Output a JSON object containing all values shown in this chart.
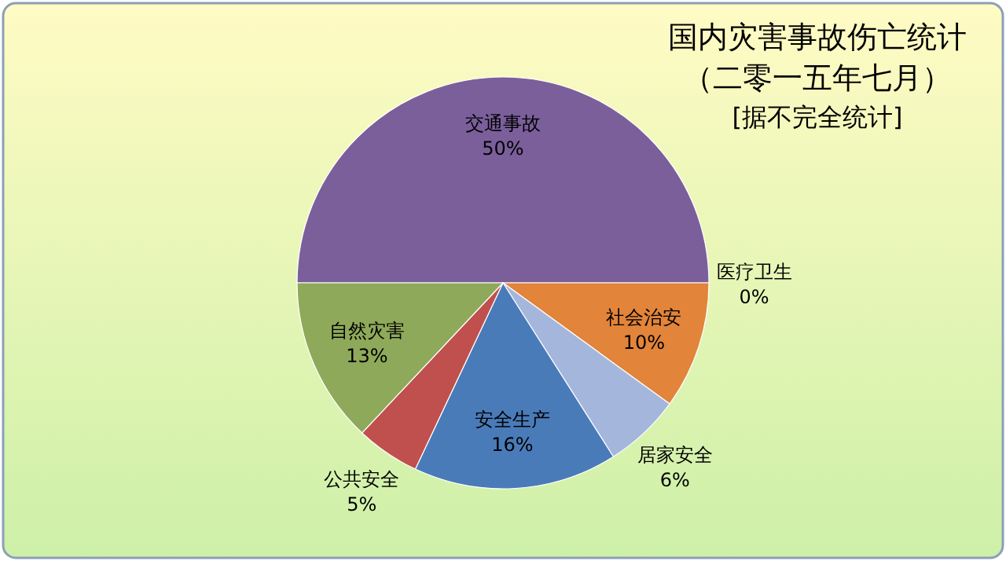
{
  "chart_data": {
    "type": "pie",
    "title": "国内灾害事故伤亡统计",
    "subtitle": "（二零一五年七月）",
    "annotations": [
      "[据不完全统计]"
    ],
    "categories": [
      "交通事故",
      "医疗卫生",
      "社会治安",
      "居家安全",
      "安全生产",
      "公共安全",
      "自然灾害"
    ],
    "values": [
      50,
      0,
      10,
      6,
      16,
      5,
      13
    ],
    "colors": [
      "#7b5f9b",
      null,
      "#e2843a",
      "#a5b6dd",
      "#4a7bb9",
      "#c0504d",
      "#8fa95a"
    ],
    "value_labels": [
      "50%",
      "0%",
      "10%",
      "6%",
      "16%",
      "5%",
      "13%"
    ]
  }
}
